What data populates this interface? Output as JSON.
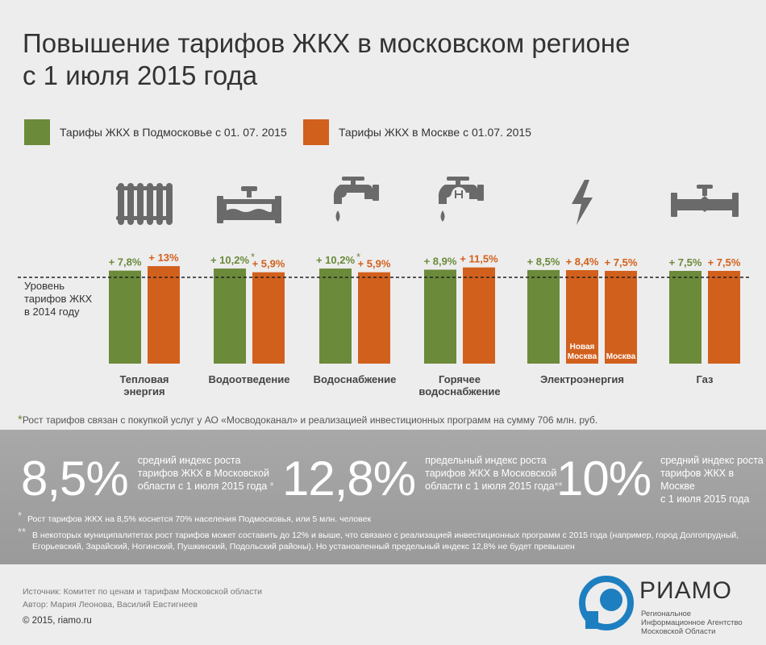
{
  "title_line1": "Повышение тарифов ЖКХ в московском регионе",
  "title_line2": "с 1 июля 2015 года",
  "legend": [
    {
      "label": "Тарифы ЖКХ в Подмосковье с 01. 07. 2015",
      "color": "#6b8a3a"
    },
    {
      "label": "Тарифы ЖКХ в Москве с 01.07. 2015",
      "color": "#d2601d"
    }
  ],
  "baseline_label": [
    "Уровень",
    "тарифов ЖКХ",
    "в 2014 году"
  ],
  "colors": {
    "green": "#6b8a3a",
    "orange": "#d2601d",
    "label_green": "#6b8a3a",
    "label_orange": "#d2601d",
    "icon": "#6a6a6a"
  },
  "chart_data": {
    "type": "bar",
    "baseline": 100,
    "categories": [
      {
        "label": [
          "Тепловая",
          "энергия"
        ],
        "icon": "radiator-icon",
        "bars": [
          {
            "label": "+ 7,8%",
            "value": 7.8,
            "series": 0,
            "star": false
          },
          {
            "label": "+ 13%",
            "value": 13,
            "series": 1,
            "star": false
          }
        ]
      },
      {
        "label": [
          "Водоотведение"
        ],
        "icon": "pipe-icon",
        "bars": [
          {
            "label": "+ 10,2%",
            "value": 10.2,
            "series": 0,
            "star": true
          },
          {
            "label": "+ 5,9%",
            "value": 5.9,
            "series": 1,
            "star": false
          }
        ]
      },
      {
        "label": [
          "Водоснабжение"
        ],
        "icon": "cold-tap-icon",
        "bars": [
          {
            "label": "+ 10,2%",
            "value": 10.2,
            "series": 0,
            "star": true
          },
          {
            "label": "+ 5,9%",
            "value": 5.9,
            "series": 1,
            "star": false
          }
        ]
      },
      {
        "label": [
          "Горячее",
          "водоснабжение"
        ],
        "icon": "hot-tap-icon",
        "bars": [
          {
            "label": "+ 8,9%",
            "value": 8.9,
            "series": 0,
            "star": false
          },
          {
            "label": "+ 11,5%",
            "value": 11.5,
            "series": 1,
            "star": false
          }
        ]
      },
      {
        "label": [
          "Электроэнергия"
        ],
        "icon": "lightning-icon",
        "bars": [
          {
            "label": "+ 8,5%",
            "value": 8.5,
            "series": 0,
            "star": false
          },
          {
            "label": "+ 8,4%",
            "value": 8.4,
            "series": 1,
            "star": false,
            "inner": [
              "Новая",
              "Москва"
            ]
          },
          {
            "label": "+ 7,5%",
            "value": 7.5,
            "series": 1,
            "star": false,
            "inner": [
              "Москва"
            ]
          }
        ]
      },
      {
        "label": [
          "Газ"
        ],
        "icon": "gas-valve-icon",
        "bars": [
          {
            "label": "+ 7,5%",
            "value": 7.5,
            "series": 0,
            "star": false
          },
          {
            "label": "+ 7,5%",
            "value": 7.5,
            "series": 1,
            "star": false
          }
        ]
      }
    ]
  },
  "footnote1": "Рост тарифов связан с покупкой услуг у АО «Мосводоканал» и реализацией инвестиционных программ на сумму 706 млн. руб.",
  "stats": [
    {
      "value": "8,5%",
      "lines": [
        "средний индекс роста",
        "тарифов ЖКХ в Московской",
        "области с 1 июля 2015 года"
      ],
      "star": "*"
    },
    {
      "value": "12,8%",
      "lines": [
        "предельный индекс роста",
        "тарифов ЖКХ в Московской",
        "области с 1 июля 2015 года"
      ],
      "star": "**"
    },
    {
      "value": "10%",
      "lines": [
        "средний индекс роста",
        "тарифов ЖКХ в Москве",
        "с 1 июля 2015 года"
      ],
      "star": ""
    }
  ],
  "notes": [
    {
      "star": "*",
      "text": "Рост тарифов ЖКХ на 8,5% коснется 70% населения Подмосковья, или 5 млн. человек"
    },
    {
      "star": "**",
      "text": "В некоторых муниципалитетах рост тарифов может составить до 12% и выше, что связано с реализацией инвестиционных программ с 2015 года (например, город Долгопрудный, Егорьевский, Зарайский, Ногинский, Пушкинский, Подольский районы). Но установленный предельный индекс 12,8% не будет превышен"
    }
  ],
  "source": "Источник: Комитет по ценам и тарифам Московской области",
  "authors": "Автор: Мария Леонова, Василий Евстигнеев",
  "copyright": "© 2015, riamo.ru",
  "logo_name": "РИАМО",
  "logo_sub": [
    "Региональное",
    "Информационное Агентство",
    "Московской Области"
  ]
}
